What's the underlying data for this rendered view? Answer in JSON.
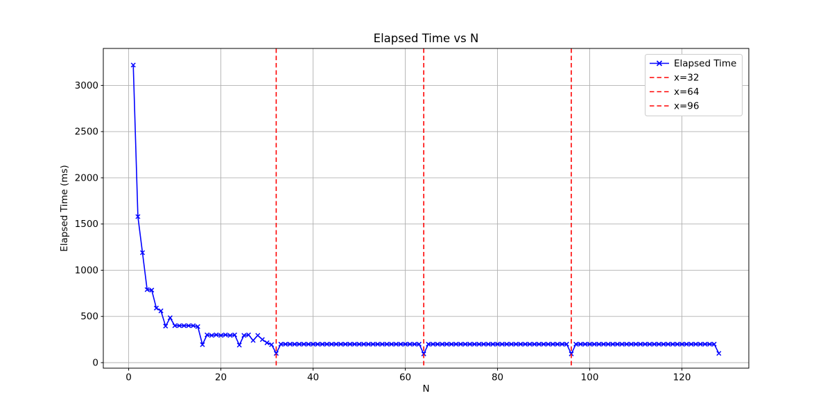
{
  "chart_data": {
    "type": "line",
    "title": "Elapsed Time vs N",
    "xlabel": "N",
    "ylabel": "Elapsed Time (ms)",
    "grid": true,
    "xlim": [
      -5.5,
      134.5
    ],
    "ylim": [
      -60,
      3400
    ],
    "xticks": [
      0,
      20,
      40,
      60,
      80,
      100,
      120
    ],
    "yticks": [
      0,
      500,
      1000,
      1500,
      2000,
      2500,
      3000
    ],
    "colors": {
      "series": "#0000ff",
      "vline": "#ff0000",
      "grid": "#b0b0b0",
      "spine": "#000000",
      "legend_border": "#cccccc"
    },
    "series": [
      {
        "name": "Elapsed Time",
        "color": "#0000ff",
        "marker": "x",
        "linestyle": "solid",
        "x": [
          1,
          2,
          3,
          4,
          5,
          6,
          7,
          8,
          9,
          10,
          11,
          12,
          13,
          14,
          15,
          16,
          17,
          18,
          19,
          20,
          21,
          22,
          23,
          24,
          25,
          26,
          27,
          28,
          29,
          30,
          31,
          32,
          33,
          34,
          35,
          36,
          37,
          38,
          39,
          40,
          41,
          42,
          43,
          44,
          45,
          46,
          47,
          48,
          49,
          50,
          51,
          52,
          53,
          54,
          55,
          56,
          57,
          58,
          59,
          60,
          61,
          62,
          63,
          64,
          65,
          66,
          67,
          68,
          69,
          70,
          71,
          72,
          73,
          74,
          75,
          76,
          77,
          78,
          79,
          80,
          81,
          82,
          83,
          84,
          85,
          86,
          87,
          88,
          89,
          90,
          91,
          92,
          93,
          94,
          95,
          96,
          97,
          98,
          99,
          100,
          101,
          102,
          103,
          104,
          105,
          106,
          107,
          108,
          109,
          110,
          111,
          112,
          113,
          114,
          115,
          116,
          117,
          118,
          119,
          120,
          121,
          122,
          123,
          124,
          125,
          126,
          127,
          128
        ],
        "y": [
          3220,
          1580,
          1190,
          790,
          785,
          590,
          560,
          395,
          485,
          400,
          400,
          400,
          400,
          400,
          390,
          195,
          300,
          295,
          300,
          295,
          300,
          295,
          300,
          190,
          295,
          300,
          240,
          295,
          250,
          215,
          195,
          100,
          200,
          200,
          200,
          200,
          200,
          200,
          200,
          200,
          200,
          200,
          200,
          200,
          200,
          200,
          200,
          200,
          200,
          200,
          200,
          200,
          200,
          200,
          200,
          200,
          200,
          200,
          200,
          200,
          200,
          200,
          200,
          95,
          200,
          200,
          200,
          200,
          200,
          200,
          200,
          200,
          200,
          200,
          200,
          200,
          200,
          200,
          200,
          200,
          200,
          200,
          200,
          200,
          200,
          200,
          200,
          200,
          200,
          200,
          200,
          200,
          200,
          200,
          200,
          95,
          200,
          200,
          200,
          200,
          200,
          200,
          200,
          200,
          200,
          200,
          200,
          200,
          200,
          200,
          200,
          200,
          200,
          200,
          200,
          200,
          200,
          200,
          200,
          200,
          200,
          200,
          200,
          200,
          200,
          200,
          200,
          100
        ]
      }
    ],
    "vlines": [
      {
        "x": 32,
        "label": "x=32",
        "color": "#ff0000",
        "linestyle": "dashed"
      },
      {
        "x": 64,
        "label": "x=64",
        "color": "#ff0000",
        "linestyle": "dashed"
      },
      {
        "x": 96,
        "label": "x=96",
        "color": "#ff0000",
        "linestyle": "dashed"
      }
    ],
    "legend": {
      "position": "upper-right",
      "entries": [
        {
          "label": "Elapsed Time",
          "type": "line-x-marker",
          "color": "#0000ff"
        },
        {
          "label": "x=32",
          "type": "dashed",
          "color": "#ff0000"
        },
        {
          "label": "x=64",
          "type": "dashed",
          "color": "#ff0000"
        },
        {
          "label": "x=96",
          "type": "dashed",
          "color": "#ff0000"
        }
      ]
    }
  }
}
